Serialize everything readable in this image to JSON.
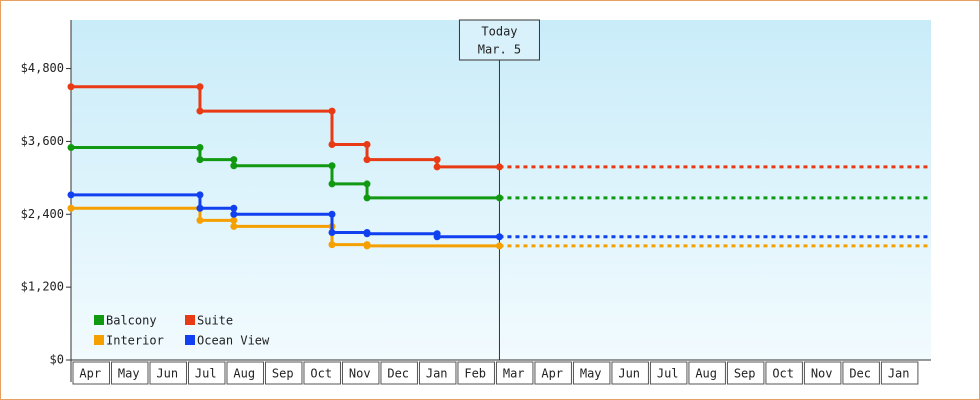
{
  "chart_data": {
    "type": "step",
    "xlim": [
      0,
      22.34
    ],
    "ylim": [
      0,
      5600
    ],
    "yticks": [
      {
        "value": 0,
        "label": "$0"
      },
      {
        "value": 1200,
        "label": "$1,200"
      },
      {
        "value": 2400,
        "label": "$2,400"
      },
      {
        "value": 3600,
        "label": "$3,600"
      },
      {
        "value": 4800,
        "label": "$4,800"
      }
    ],
    "xticks": [
      {
        "value": 0.5,
        "label": "Apr"
      },
      {
        "value": 1.5,
        "label": "May"
      },
      {
        "value": 2.5,
        "label": "Jun"
      },
      {
        "value": 3.5,
        "label": "Jul"
      },
      {
        "value": 4.5,
        "label": "Aug"
      },
      {
        "value": 5.5,
        "label": "Sep"
      },
      {
        "value": 6.5,
        "label": "Oct"
      },
      {
        "value": 7.5,
        "label": "Nov"
      },
      {
        "value": 8.5,
        "label": "Dec"
      },
      {
        "value": 9.5,
        "label": "Jan"
      },
      {
        "value": 10.5,
        "label": "Feb"
      },
      {
        "value": 11.5,
        "label": "Mar"
      },
      {
        "value": 12.5,
        "label": "Apr"
      },
      {
        "value": 13.5,
        "label": "May"
      },
      {
        "value": 14.5,
        "label": "Jun"
      },
      {
        "value": 15.5,
        "label": "Jul"
      },
      {
        "value": 16.5,
        "label": "Aug"
      },
      {
        "value": 17.5,
        "label": "Sep"
      },
      {
        "value": 18.5,
        "label": "Oct"
      },
      {
        "value": 19.5,
        "label": "Nov"
      },
      {
        "value": 20.5,
        "label": "Dec"
      },
      {
        "value": 21.5,
        "label": "Jan"
      }
    ],
    "today": {
      "label": [
        "Today",
        "Mar. 5"
      ],
      "x": 11.13
    },
    "series": [
      {
        "name": "Balcony",
        "color": "#119911",
        "x": [
          0,
          3.35,
          4.23,
          6.78,
          7.69
        ],
        "values": [
          3500,
          3300,
          3200,
          2900,
          2670
        ]
      },
      {
        "name": "Suite",
        "color": "#e83a14",
        "x": [
          0,
          3.35,
          6.78,
          7.69,
          9.51
        ],
        "values": [
          4500,
          4100,
          3550,
          3300,
          3180
        ]
      },
      {
        "name": "Interior",
        "color": "#f5a000",
        "x": [
          0,
          3.35,
          4.23,
          6.78,
          7.69
        ],
        "values": [
          2500,
          2300,
          2200,
          1900,
          1880
        ]
      },
      {
        "name": "Ocean View",
        "color": "#1040f0",
        "x": [
          0,
          3.35,
          4.23,
          6.78,
          7.69,
          9.51
        ],
        "values": [
          2720,
          2500,
          2400,
          2100,
          2080,
          2030
        ]
      }
    ]
  }
}
